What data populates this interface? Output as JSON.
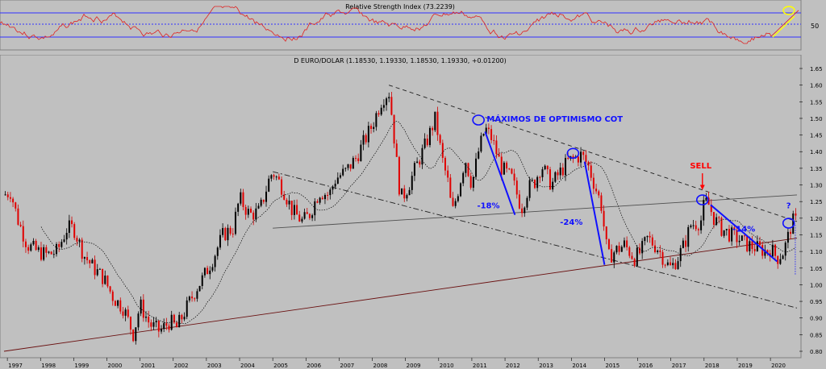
{
  "rsi_panel": {
    "title": "Relative Strength Index (73.2239)",
    "tick_label": "50",
    "upper_level": 70,
    "mid_level": 50,
    "lower_level": 30,
    "annotation_color": "#ffff00"
  },
  "chart_data": {
    "type": "candlestick",
    "title": "D EURO/DOLAR (1.18530, 1.19330, 1.18530, 1.19330, +0.01200)",
    "x_ticks": [
      "1997",
      "1998",
      "1999",
      "2000",
      "2001",
      "2002",
      "2003",
      "2004",
      "2005",
      "2006",
      "2007",
      "2008",
      "2009",
      "2010",
      "2011",
      "2012",
      "2013",
      "2014",
      "2015",
      "2016",
      "2017",
      "2018",
      "2019",
      "2020"
    ],
    "y_ticks": [
      "1.65",
      "1.60",
      "1.55",
      "1.50",
      "1.45",
      "1.40",
      "1.35",
      "1.30",
      "1.25",
      "1.20",
      "1.15",
      "1.10",
      "1.05",
      "1.00",
      "0.95",
      "0.90",
      "0.85",
      "0.80"
    ],
    "ylim": [
      0.8,
      1.65
    ],
    "xlim": [
      1996.9,
      2020.8
    ],
    "price_path": [
      [
        1996.9,
        1.27
      ],
      [
        1997.1,
        1.28
      ],
      [
        1997.3,
        1.2
      ],
      [
        1997.6,
        1.12
      ],
      [
        1997.9,
        1.1
      ],
      [
        1998.2,
        1.09
      ],
      [
        1998.5,
        1.1
      ],
      [
        1998.8,
        1.17
      ],
      [
        1999.0,
        1.17
      ],
      [
        1999.3,
        1.09
      ],
      [
        1999.6,
        1.05
      ],
      [
        1999.9,
        1.02
      ],
      [
        2000.2,
        0.96
      ],
      [
        2000.5,
        0.93
      ],
      [
        2000.8,
        0.85
      ],
      [
        2001.0,
        0.94
      ],
      [
        2001.3,
        0.88
      ],
      [
        2001.6,
        0.86
      ],
      [
        2001.9,
        0.89
      ],
      [
        2002.1,
        0.87
      ],
      [
        2002.4,
        0.93
      ],
      [
        2002.7,
        0.99
      ],
      [
        2002.9,
        1.02
      ],
      [
        2003.2,
        1.08
      ],
      [
        2003.5,
        1.15
      ],
      [
        2003.8,
        1.17
      ],
      [
        2004.0,
        1.26
      ],
      [
        2004.3,
        1.21
      ],
      [
        2004.6,
        1.22
      ],
      [
        2004.9,
        1.32
      ],
      [
        2005.0,
        1.34
      ],
      [
        2005.3,
        1.29
      ],
      [
        2005.6,
        1.22
      ],
      [
        2005.9,
        1.19
      ],
      [
        2006.1,
        1.21
      ],
      [
        2006.4,
        1.28
      ],
      [
        2006.7,
        1.27
      ],
      [
        2006.9,
        1.32
      ],
      [
        2007.2,
        1.34
      ],
      [
        2007.5,
        1.38
      ],
      [
        2007.8,
        1.44
      ],
      [
        2008.0,
        1.48
      ],
      [
        2008.3,
        1.56
      ],
      [
        2008.5,
        1.58
      ],
      [
        2008.6,
        1.5
      ],
      [
        2008.8,
        1.3
      ],
      [
        2008.9,
        1.26
      ],
      [
        2009.1,
        1.3
      ],
      [
        2009.3,
        1.35
      ],
      [
        2009.6,
        1.42
      ],
      [
        2009.9,
        1.5
      ],
      [
        2010.1,
        1.38
      ],
      [
        2010.3,
        1.3
      ],
      [
        2010.4,
        1.21
      ],
      [
        2010.6,
        1.29
      ],
      [
        2010.8,
        1.38
      ],
      [
        2011.0,
        1.3
      ],
      [
        2011.2,
        1.4
      ],
      [
        2011.4,
        1.47
      ],
      [
        2011.6,
        1.44
      ],
      [
        2011.9,
        1.35
      ],
      [
        2012.2,
        1.32
      ],
      [
        2012.5,
        1.23
      ],
      [
        2012.7,
        1.29
      ],
      [
        2012.9,
        1.31
      ],
      [
        2013.1,
        1.36
      ],
      [
        2013.4,
        1.3
      ],
      [
        2013.6,
        1.33
      ],
      [
        2013.9,
        1.37
      ],
      [
        2014.1,
        1.38
      ],
      [
        2014.3,
        1.39
      ],
      [
        2014.5,
        1.36
      ],
      [
        2014.7,
        1.3
      ],
      [
        2014.9,
        1.24
      ],
      [
        2015.0,
        1.16
      ],
      [
        2015.1,
        1.08
      ],
      [
        2015.3,
        1.1
      ],
      [
        2015.6,
        1.12
      ],
      [
        2015.9,
        1.08
      ],
      [
        2016.1,
        1.1
      ],
      [
        2016.3,
        1.14
      ],
      [
        2016.6,
        1.11
      ],
      [
        2016.9,
        1.06
      ],
      [
        2017.0,
        1.05
      ],
      [
        2017.2,
        1.08
      ],
      [
        2017.4,
        1.12
      ],
      [
        2017.6,
        1.18
      ],
      [
        2017.9,
        1.19
      ],
      [
        2018.0,
        1.24
      ],
      [
        2018.1,
        1.25
      ],
      [
        2018.3,
        1.2
      ],
      [
        2018.5,
        1.17
      ],
      [
        2018.8,
        1.15
      ],
      [
        2019.0,
        1.14
      ],
      [
        2019.3,
        1.12
      ],
      [
        2019.6,
        1.11
      ],
      [
        2019.9,
        1.1
      ],
      [
        2020.0,
        1.11
      ],
      [
        2020.2,
        1.08
      ],
      [
        2020.4,
        1.1
      ],
      [
        2020.55,
        1.15
      ],
      [
        2020.65,
        1.19
      ]
    ],
    "trendlines": [
      {
        "style": "dashed",
        "from": [
          2008.5,
          1.6
        ],
        "to": [
          2020.8,
          1.19
        ]
      },
      {
        "style": "dashdot",
        "from": [
          2005.0,
          1.34
        ],
        "to": [
          2020.8,
          0.93
        ]
      },
      {
        "style": "solid",
        "from": [
          2005.0,
          1.17
        ],
        "to": [
          2020.8,
          1.27
        ]
      },
      {
        "style": "solid",
        "from": [
          1996.9,
          0.8
        ],
        "to": [
          2020.8,
          1.14
        ]
      }
    ],
    "annotations": [
      {
        "text": "MÁXIMOS DE OPTIMISMO COT",
        "x": 2013.5,
        "y": 1.49,
        "color": "#1010ff"
      },
      {
        "text": "-18%",
        "x": 2011.5,
        "y": 1.23,
        "color": "#1010ff"
      },
      {
        "text": "-24%",
        "x": 2014.0,
        "y": 1.18,
        "color": "#1010ff"
      },
      {
        "text": "SELL",
        "x": 2017.9,
        "y": 1.35,
        "color": "#ff0000"
      },
      {
        "text": "-14%",
        "x": 2019.2,
        "y": 1.16,
        "color": "#1010ff"
      },
      {
        "text": "?",
        "x": 2020.55,
        "y": 1.23,
        "color": "#1010ff"
      }
    ],
    "highlight_circles": [
      {
        "x": 2011.2,
        "y": 1.495
      },
      {
        "x": 2014.05,
        "y": 1.395
      },
      {
        "x": 2017.95,
        "y": 1.255
      },
      {
        "x": 2020.55,
        "y": 1.185
      }
    ],
    "drop_arrows": [
      {
        "from": [
          2011.4,
          1.46
        ],
        "to": [
          2012.3,
          1.21
        ]
      },
      {
        "from": [
          2014.4,
          1.37
        ],
        "to": [
          2015.0,
          1.06
        ]
      },
      {
        "from": [
          2018.2,
          1.24
        ],
        "to": [
          2020.2,
          1.07
        ]
      }
    ]
  }
}
